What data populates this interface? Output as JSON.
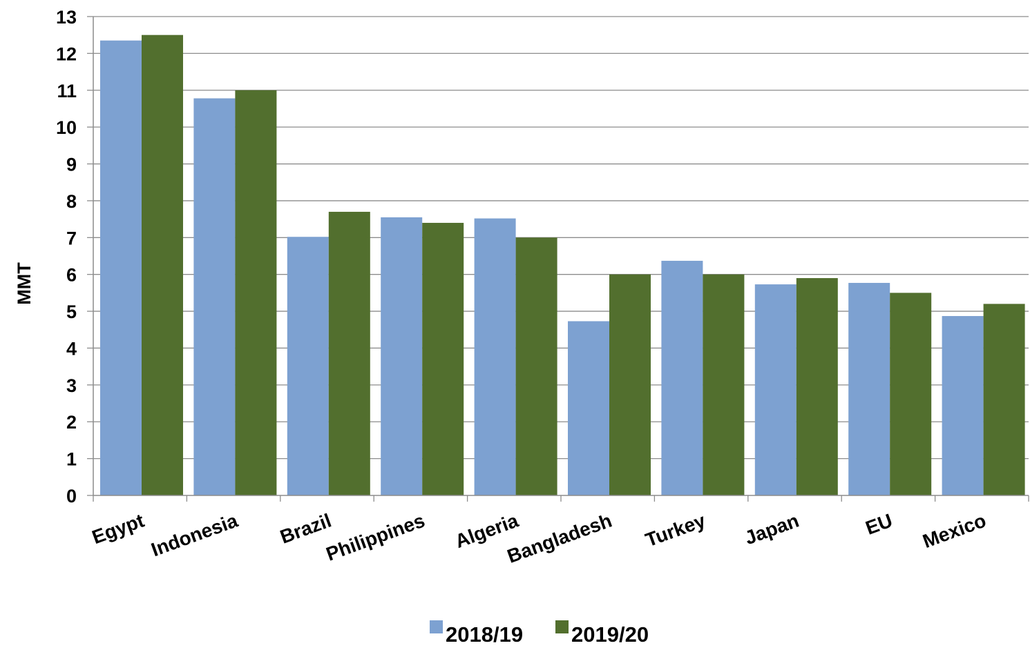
{
  "chart_data": {
    "type": "bar",
    "title": "",
    "xlabel": "",
    "ylabel": "MMT",
    "ylim": [
      0,
      13
    ],
    "yticks": [
      0,
      1,
      2,
      3,
      4,
      5,
      6,
      7,
      8,
      9,
      10,
      11,
      12,
      13
    ],
    "grid": true,
    "legend_position": "bottom",
    "categories": [
      "Egypt",
      "Indonesia",
      "Brazil",
      "Philippines",
      "Algeria",
      "Bangladesh",
      "Turkey",
      "Japan",
      "EU",
      "Mexico"
    ],
    "series": [
      {
        "name": "2018/19",
        "color": "#7da1d1",
        "values": [
          12.35,
          10.78,
          7.02,
          7.55,
          7.52,
          4.73,
          6.37,
          5.73,
          5.77,
          4.87
        ]
      },
      {
        "name": "2019/20",
        "color": "#526f2e",
        "values": [
          12.5,
          11.0,
          7.7,
          7.4,
          7.0,
          6.0,
          6.0,
          5.9,
          5.5,
          5.2
        ]
      }
    ]
  }
}
